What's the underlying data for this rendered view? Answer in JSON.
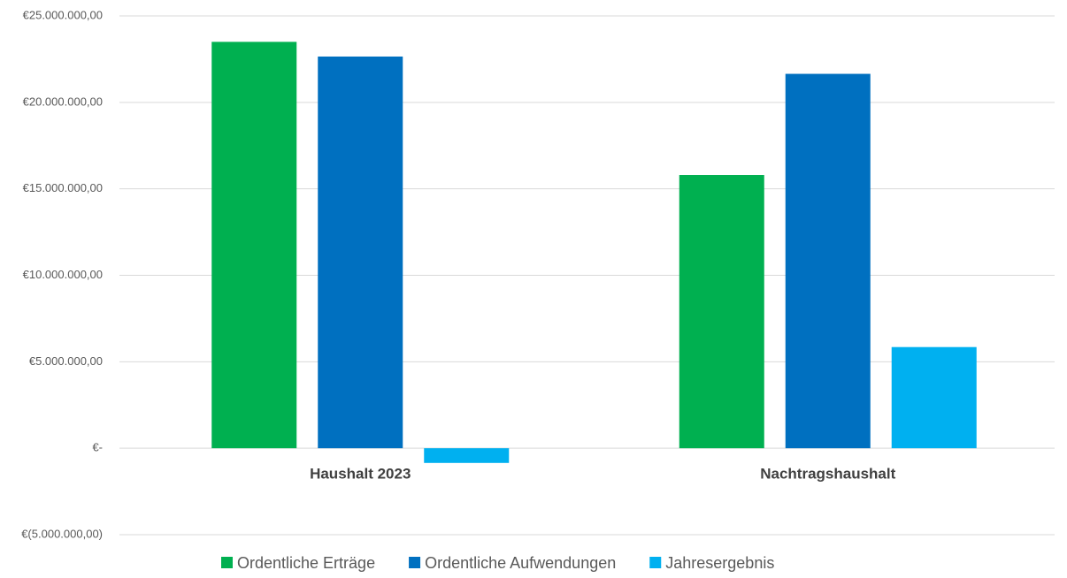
{
  "chart_data": {
    "type": "bar",
    "categories": [
      "Haushalt 2023",
      "Nachtragshaushalt"
    ],
    "series": [
      {
        "name": "Ordentliche Erträge",
        "color": "#00b050",
        "values": [
          23500000,
          15800000
        ]
      },
      {
        "name": "Ordentliche Aufwendungen",
        "color": "#0070c0",
        "values": [
          22650000,
          21650000
        ]
      },
      {
        "name": "Jahresergebnis",
        "color": "#00b0f0",
        "values": [
          -850000,
          5850000
        ]
      }
    ],
    "ylim": [
      -5000000,
      25000000
    ],
    "yticks": [
      {
        "value": -5000000,
        "label": "€(5.000.000,00)"
      },
      {
        "value": 0,
        "label": "€-"
      },
      {
        "value": 5000000,
        "label": "€5.000.000,00"
      },
      {
        "value": 10000000,
        "label": "€10.000.000,00"
      },
      {
        "value": 15000000,
        "label": "€15.000.000,00"
      },
      {
        "value": 20000000,
        "label": "€20.000.000,00"
      },
      {
        "value": 25000000,
        "label": "€25.000.000,00"
      }
    ],
    "grid": true,
    "legend": "bottom"
  }
}
